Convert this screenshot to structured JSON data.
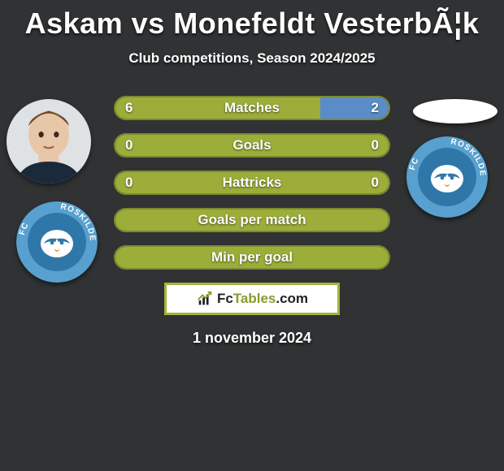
{
  "header": {
    "title": "Askam vs Monefeldt VesterbÃ¦k",
    "subtitle": "Club competitions, Season 2024/2025"
  },
  "colors": {
    "olive": "#9cad3a",
    "olive_border": "#7d8a2e",
    "blue": "#5a8dc8",
    "background": "#303234",
    "white": "#ffffff",
    "roskilde_blue": "#2f77a8",
    "roskilde_ring": "#57a0cf"
  },
  "players": {
    "left": {
      "name": "Askam",
      "club": "FC Roskilde"
    },
    "right": {
      "name": "Monefeldt Vesterbæk",
      "club": "FC Roskilde"
    }
  },
  "stats": [
    {
      "label": "Matches",
      "left_value": "6",
      "right_value": "2",
      "left_pct": 75,
      "right_pct": 25,
      "show_split": true
    },
    {
      "label": "Goals",
      "left_value": "0",
      "right_value": "0",
      "left_pct": 100,
      "right_pct": 0,
      "show_split": false
    },
    {
      "label": "Hattricks",
      "left_value": "0",
      "right_value": "0",
      "left_pct": 100,
      "right_pct": 0,
      "show_split": false
    },
    {
      "label": "Goals per match",
      "left_value": "",
      "right_value": "",
      "left_pct": 100,
      "right_pct": 0,
      "show_split": false
    },
    {
      "label": "Min per goal",
      "left_value": "",
      "right_value": "",
      "left_pct": 100,
      "right_pct": 0,
      "show_split": false
    }
  ],
  "footer": {
    "brand_prefix": "Fc",
    "brand_mid": "Tables",
    "brand_suffix": ".com",
    "date": "1 november 2024"
  }
}
